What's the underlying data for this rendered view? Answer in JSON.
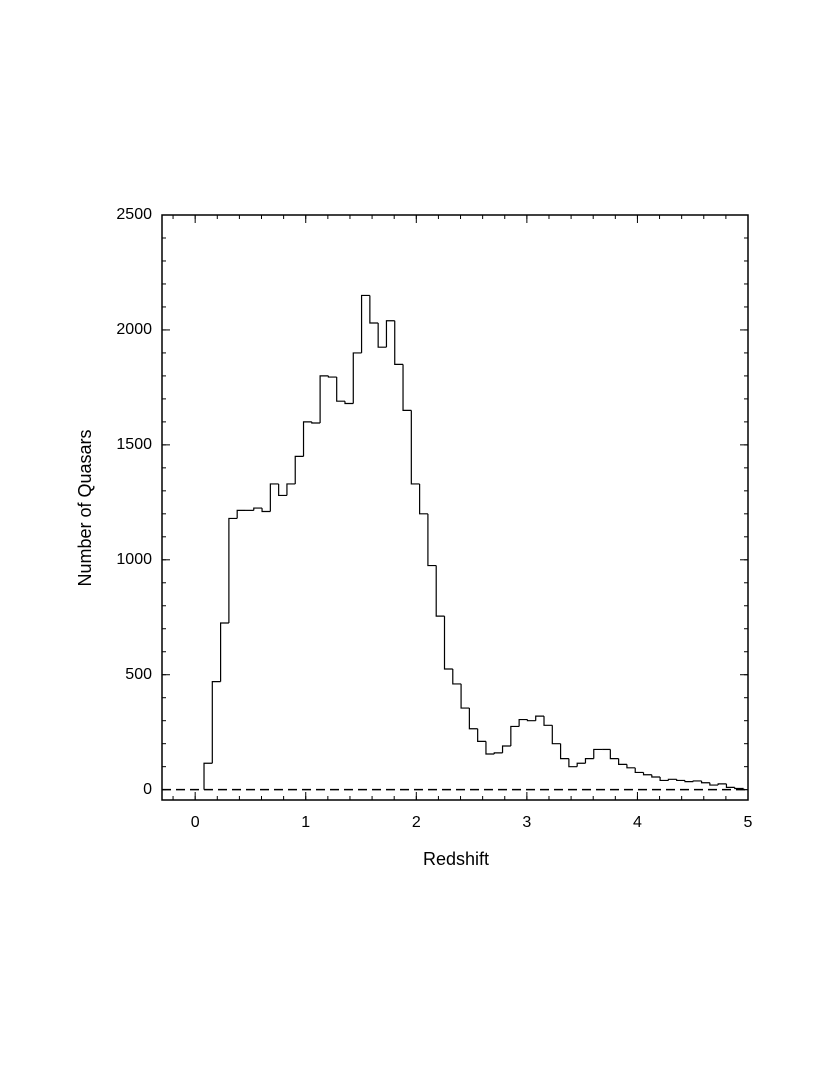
{
  "chart_data": {
    "type": "histogram",
    "x_label": "Redshift",
    "y_label": "Number of Quasars",
    "bins": [
      0.08,
      0.155,
      0.23,
      0.305,
      0.38,
      0.455,
      0.53,
      0.605,
      0.68,
      0.755,
      0.83,
      0.905,
      0.98,
      1.055,
      1.13,
      1.205,
      1.28,
      1.355,
      1.43,
      1.505,
      1.58,
      1.655,
      1.73,
      1.805,
      1.88,
      1.955,
      2.03,
      2.105,
      2.18,
      2.255,
      2.33,
      2.405,
      2.48,
      2.555,
      2.63,
      2.705,
      2.78,
      2.855,
      2.93,
      3.005,
      3.08,
      3.155,
      3.23,
      3.305,
      3.38,
      3.455,
      3.53,
      3.605,
      3.68,
      3.755,
      3.83,
      3.905,
      3.98,
      4.055,
      4.13,
      4.205,
      4.28,
      4.355,
      4.43,
      4.505,
      4.58,
      4.655,
      4.73,
      4.805,
      4.88,
      4.955
    ],
    "values": [
      115,
      470,
      725,
      1180,
      1215,
      1215,
      1225,
      1210,
      1330,
      1280,
      1330,
      1450,
      1600,
      1595,
      1800,
      1795,
      1690,
      1680,
      1900,
      2150,
      2030,
      1925,
      2040,
      1850,
      1650,
      1330,
      1200,
      975,
      755,
      525,
      460,
      355,
      265,
      210,
      155,
      160,
      190,
      275,
      305,
      300,
      320,
      280,
      200,
      135,
      100,
      115,
      135,
      175,
      175,
      135,
      110,
      95,
      75,
      65,
      55,
      40,
      45,
      40,
      35,
      38,
      30,
      20,
      25,
      10,
      5
    ],
    "color": "#000000",
    "xlim": [
      -0.3,
      5
    ],
    "xticks": [
      0,
      1,
      2,
      3,
      4,
      5
    ],
    "xminor": 0.2,
    "ylim": [
      -45,
      2500
    ],
    "yticks": [
      0,
      500,
      1000,
      1500,
      2000,
      2500
    ],
    "yminor": 100,
    "reference_line": {
      "value": 0,
      "style": "dashed"
    },
    "grid": false
  }
}
